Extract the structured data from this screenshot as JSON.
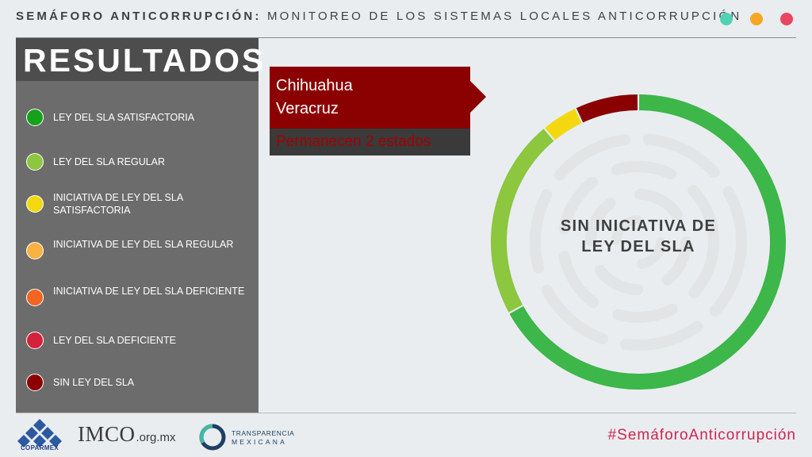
{
  "header": {
    "title_bold": "SEMÁFORO ANTICORRUPCIÓN:",
    "title_rest": " MONITOREO DE LOS SISTEMAS LOCALES ANTICORRUPCIÓN",
    "dots": [
      "#52d2b4",
      "#f5a623",
      "#e8475f"
    ]
  },
  "sidebar": {
    "title": "RESULTADOS",
    "legend": [
      {
        "label": "LEY DEL SLA SATISFACTORIA",
        "color": "#15a21a"
      },
      {
        "label": "LEY DEL SLA REGULAR",
        "color": "#8dc63f"
      },
      {
        "label": "INICIATIVA DE LEY DEL SLA SATISFACTORIA",
        "color": "#f3d80f"
      },
      {
        "label": "INICIATIVA DE LEY DEL SLA REGULAR",
        "color": "#f9b142"
      },
      {
        "label": "INICIATIVA DE LEY DEL SLA DEFICIENTE",
        "color": "#f26522"
      },
      {
        "label": "LEY DEL SLA DEFICIENTE",
        "color": "#d3223a"
      },
      {
        "label": "SIN LEY DEL SLA",
        "color": "#8b0000"
      }
    ]
  },
  "states": {
    "line1": "Chihuahua",
    "line2": "Veracruz",
    "remain": "Permanecen 2 estados"
  },
  "chart_data": {
    "type": "pie",
    "donut": true,
    "center_label_1": "SIN INICIATIVA DE",
    "center_label_2": "LEY DEL SLA",
    "values": [
      67,
      22,
      4,
      7
    ],
    "colors": [
      "#3db64a",
      "#8dc63f",
      "#f3d80f",
      "#8b0000"
    ]
  },
  "footer": {
    "coparmex": "COPARMEX",
    "imco_main": "IMCO",
    "imco_sub": ".org.mx",
    "tm_line1": "TRANSPARENCIA",
    "tm_line2": "MEXICANA",
    "hashtag": "#SemáforoAnticorrupción"
  }
}
